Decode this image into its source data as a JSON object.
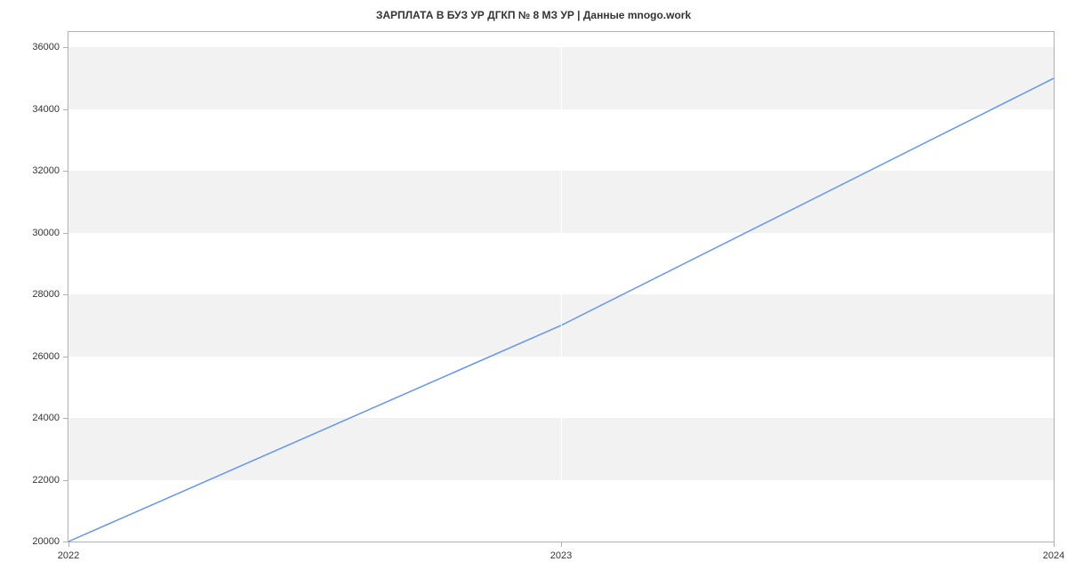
{
  "chart": {
    "type": "line",
    "title": "ЗАРПЛАТА В БУЗ УР ДГКП № 8 МЗ УР | Данные mnogo.work",
    "title_fontsize": 12,
    "title_color": "#333333",
    "background_color": "#ffffff",
    "plot_background_bands": [
      "#ffffff",
      "#f2f2f2"
    ],
    "border_color": "#b0b0b0",
    "line_color": "#6495ed",
    "line_width": 1.5,
    "axis_label_fontsize": 11,
    "axis_label_color": "#333333",
    "x": {
      "ticks": [
        {
          "label": "2022",
          "value": 0
        },
        {
          "label": "2023",
          "value": 1
        },
        {
          "label": "2024",
          "value": 2
        }
      ],
      "min": 0,
      "max": 2
    },
    "y": {
      "ticks": [
        20000,
        22000,
        24000,
        26000,
        28000,
        30000,
        32000,
        34000,
        36000
      ],
      "min": 20000,
      "max": 36500
    },
    "series": {
      "points": [
        {
          "x": 0,
          "y": 20000
        },
        {
          "x": 1,
          "y": 27000
        },
        {
          "x": 2,
          "y": 35000
        }
      ]
    }
  }
}
